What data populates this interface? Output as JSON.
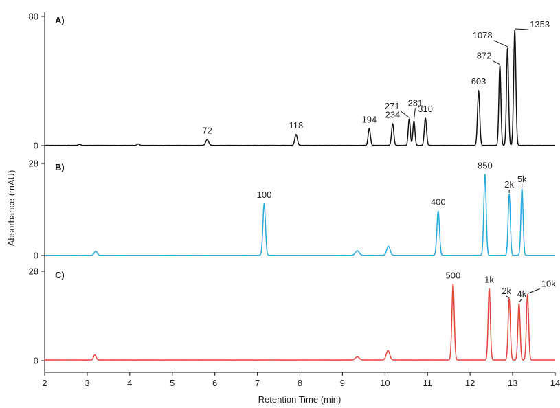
{
  "chart_data": {
    "type": "line",
    "xlabel": "Retention Time (min)",
    "ylabel": "Absorbance (mAU)",
    "xlim": [
      2,
      14
    ],
    "x_ticks": [
      "2",
      "3",
      "4",
      "5",
      "6",
      "7",
      "8",
      "9",
      "10",
      "11",
      "12",
      "13",
      "14"
    ],
    "grid": false,
    "legend": "none",
    "panels": [
      {
        "label": "A)",
        "color": "#111111",
        "ylim": [
          0,
          80
        ],
        "y_ticks": [
          "0",
          "80"
        ],
        "peaks": [
          {
            "x": 2.82,
            "y": 0.6,
            "w": 0.03
          },
          {
            "x": 4.2,
            "y": 0.9,
            "w": 0.025
          },
          {
            "x": 5.82,
            "y": 3.6,
            "w": 0.035,
            "label": "72"
          },
          {
            "x": 7.91,
            "y": 6.8,
            "w": 0.03,
            "label": "118"
          },
          {
            "x": 9.63,
            "y": 10.5,
            "w": 0.026,
            "label": "194"
          },
          {
            "x": 10.18,
            "y": 13.5,
            "w": 0.026,
            "label": "234"
          },
          {
            "x": 10.57,
            "y": 16.5,
            "w": 0.024,
            "label": "271"
          },
          {
            "x": 10.68,
            "y": 15.2,
            "w": 0.024,
            "label": "281"
          },
          {
            "x": 10.95,
            "y": 17.0,
            "w": 0.026,
            "label": "310"
          },
          {
            "x": 12.2,
            "y": 34.0,
            "w": 0.026,
            "label": "603"
          },
          {
            "x": 12.7,
            "y": 49.5,
            "w": 0.024,
            "label": "872"
          },
          {
            "x": 12.88,
            "y": 60.5,
            "w": 0.024,
            "label": "1078"
          },
          {
            "x": 13.05,
            "y": 71.5,
            "w": 0.026,
            "label": "1353"
          }
        ]
      },
      {
        "label": "B)",
        "color": "#29a9dc",
        "ylim": [
          0,
          28
        ],
        "y_ticks": [
          "0",
          "28"
        ],
        "peaks": [
          {
            "x": 3.2,
            "y": 1.3,
            "w": 0.035
          },
          {
            "x": 7.16,
            "y": 15.7,
            "w": 0.03,
            "label": "100"
          },
          {
            "x": 9.35,
            "y": 1.4,
            "w": 0.045
          },
          {
            "x": 10.08,
            "y": 2.8,
            "w": 0.04
          },
          {
            "x": 11.25,
            "y": 13.5,
            "w": 0.03,
            "label": "400"
          },
          {
            "x": 12.35,
            "y": 24.6,
            "w": 0.028,
            "label": "850"
          },
          {
            "x": 12.92,
            "y": 18.6,
            "w": 0.026,
            "label": "2k"
          },
          {
            "x": 13.22,
            "y": 20.3,
            "w": 0.026,
            "label": "5k"
          }
        ]
      },
      {
        "label": "C)",
        "color": "#e2453c",
        "ylim": [
          0,
          28
        ],
        "y_ticks": [
          "0",
          "28"
        ],
        "peaks": [
          {
            "x": 3.18,
            "y": 1.6,
            "w": 0.03
          },
          {
            "x": 9.35,
            "y": 1.0,
            "w": 0.045
          },
          {
            "x": 10.07,
            "y": 3.0,
            "w": 0.04
          },
          {
            "x": 11.6,
            "y": 23.8,
            "w": 0.028,
            "label": "500"
          },
          {
            "x": 12.45,
            "y": 22.5,
            "w": 0.026,
            "label": "1k"
          },
          {
            "x": 12.92,
            "y": 19.2,
            "w": 0.026,
            "label": "2k"
          },
          {
            "x": 13.15,
            "y": 17.8,
            "w": 0.026,
            "label": "4k"
          },
          {
            "x": 13.35,
            "y": 20.6,
            "w": 0.026,
            "label": "10k"
          }
        ]
      }
    ]
  }
}
